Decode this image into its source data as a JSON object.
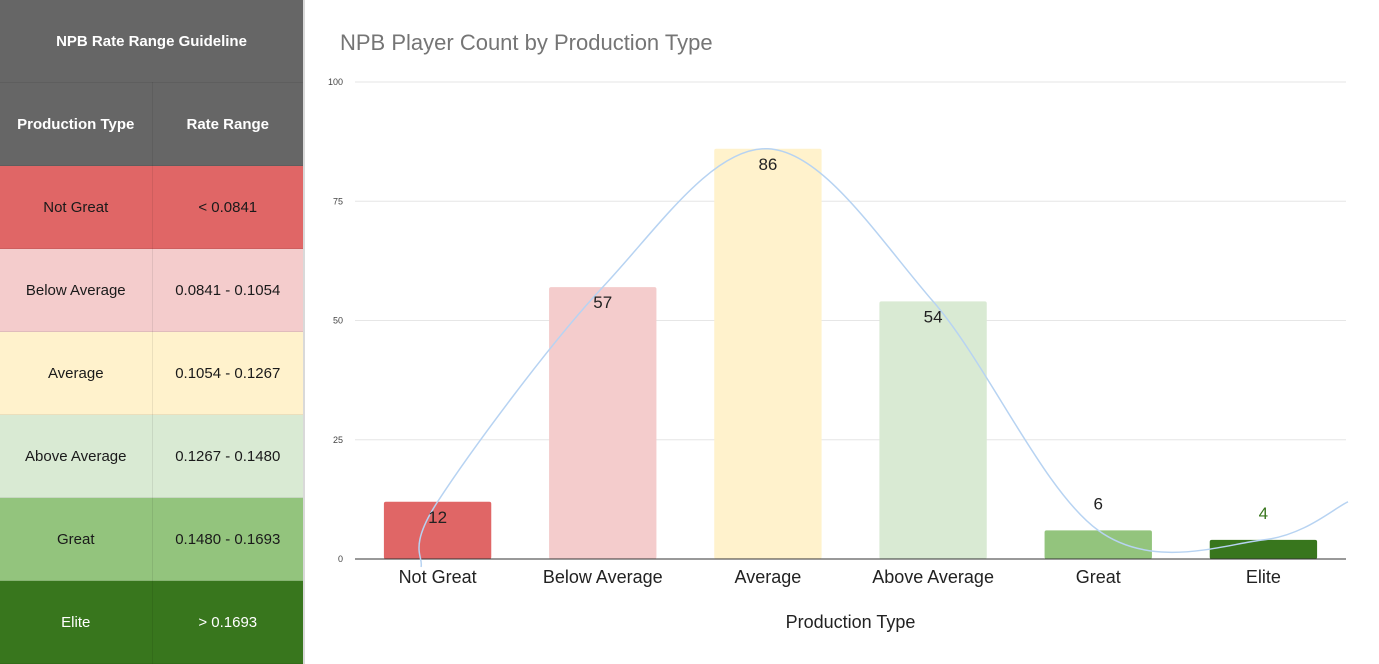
{
  "guide": {
    "title": "NPB Rate Range Guideline",
    "headers": [
      "Production Type",
      "Rate Range"
    ],
    "rows": [
      {
        "type": "Not Great",
        "range": "< 0.0841",
        "bg": "#e06666",
        "fg": "#1a1a1a"
      },
      {
        "type": "Below Average",
        "range": "0.0841 - 0.1054",
        "bg": "#f4cccc",
        "fg": "#1a1a1a"
      },
      {
        "type": "Average",
        "range": "0.1054 - 0.1267",
        "bg": "#fff2cc",
        "fg": "#1a1a1a"
      },
      {
        "type": "Above Average",
        "range": "0.1267 - 0.1480",
        "bg": "#d9ead3",
        "fg": "#1a1a1a"
      },
      {
        "type": "Great",
        "range": "0.1480 - 0.1693",
        "bg": "#93c47d",
        "fg": "#1a1a1a"
      },
      {
        "type": "Elite",
        "range": "> 0.1693",
        "bg": "#38761d",
        "fg": "#ffffff"
      }
    ]
  },
  "chart_data": {
    "type": "bar",
    "title": "NPB Player Count by Production Type",
    "xlabel": "Production Type",
    "ylabel": "",
    "categories": [
      "Not Great",
      "Below Average",
      "Average",
      "Above Average",
      "Great",
      "Elite"
    ],
    "values": [
      12,
      57,
      86,
      54,
      6,
      4
    ],
    "colors": [
      "#e06666",
      "#f4cccc",
      "#fff2cc",
      "#d9ead3",
      "#93c47d",
      "#38761d"
    ],
    "label_colors": [
      "#222222",
      "#222222",
      "#222222",
      "#222222",
      "#222222",
      "#38761d"
    ],
    "ylim": [
      0,
      100
    ],
    "yticks": [
      0,
      25,
      50,
      75,
      100
    ],
    "grid": true,
    "trendline": true,
    "trendline_color": "#b7d3f2"
  }
}
